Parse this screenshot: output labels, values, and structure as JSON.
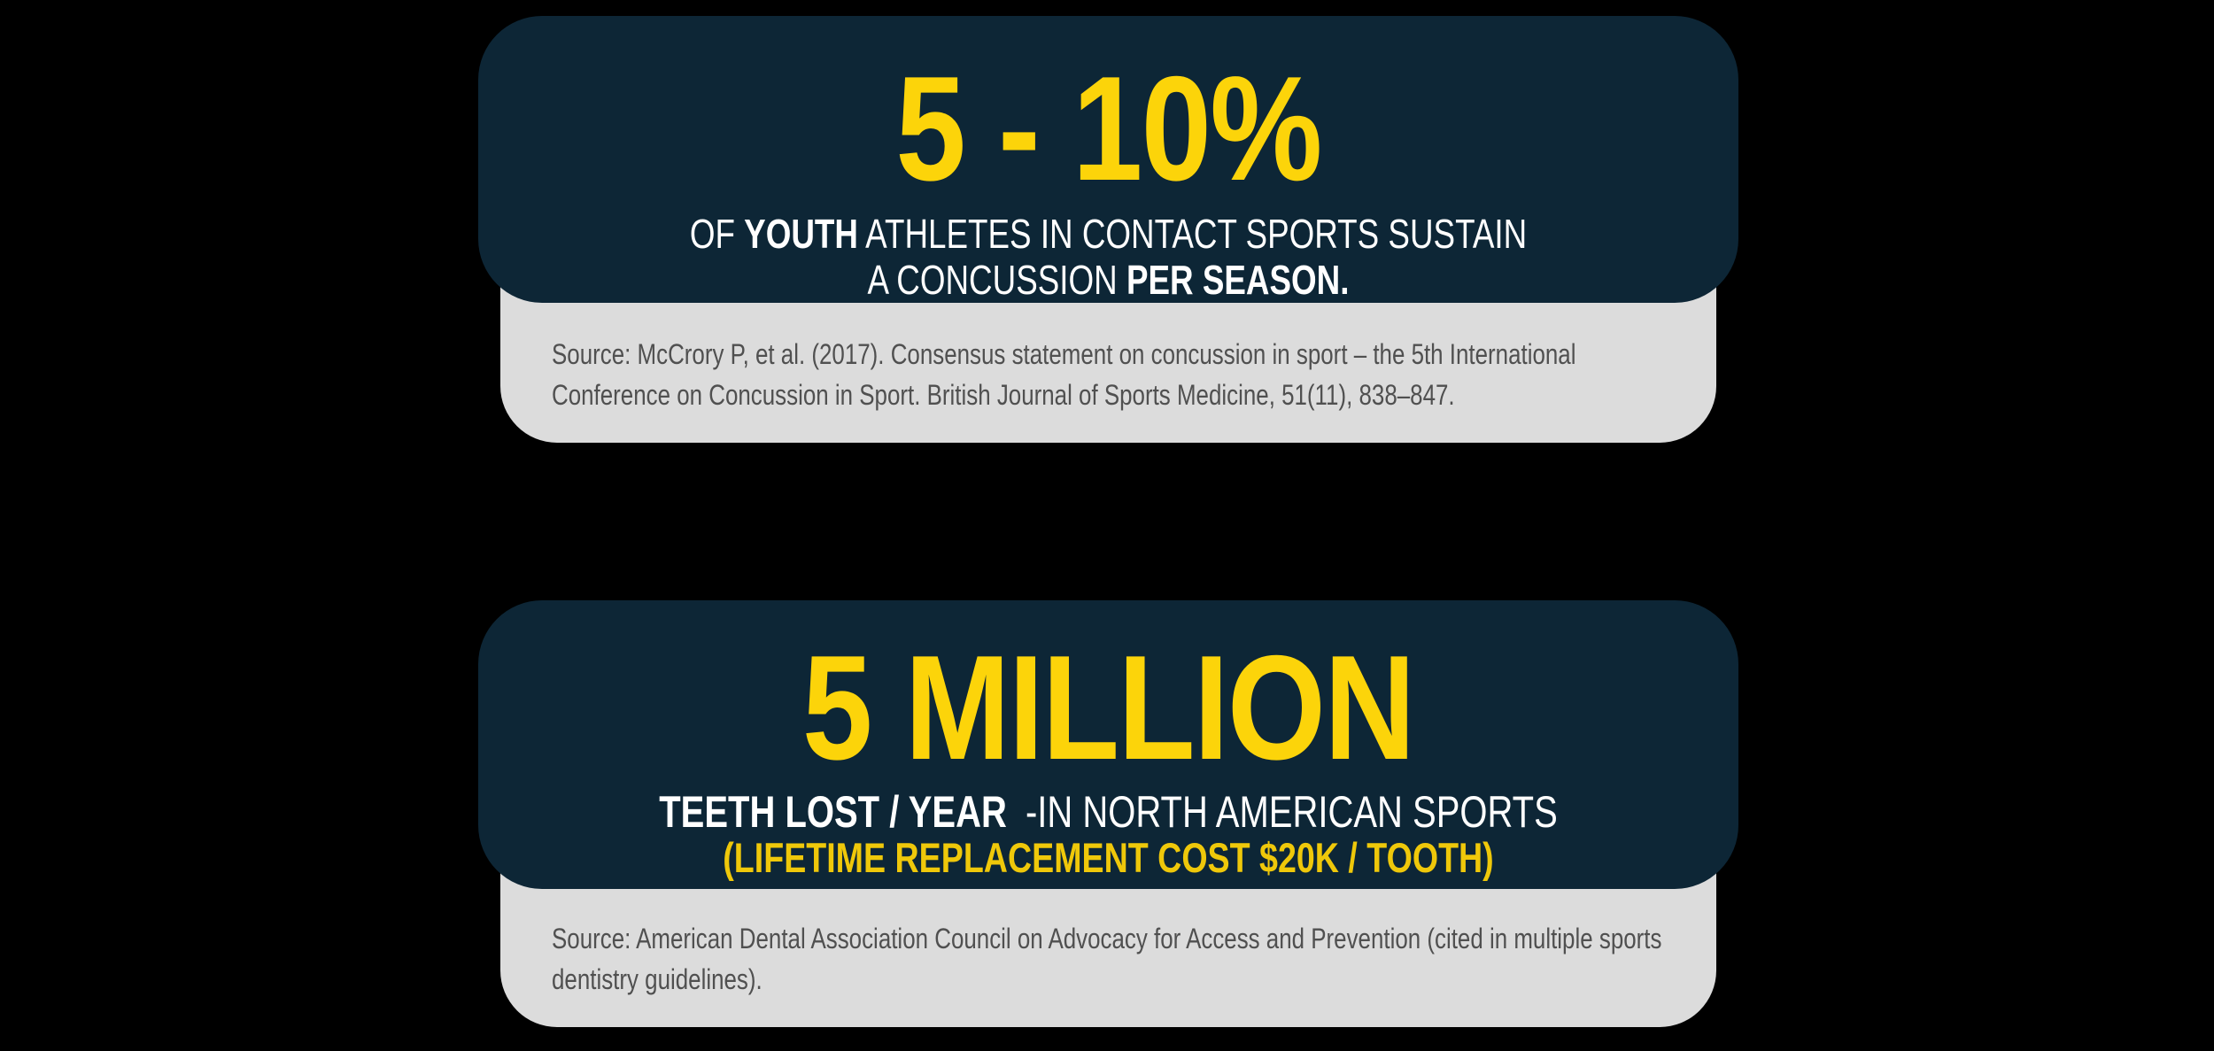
{
  "page": {
    "background": "#000000"
  },
  "colors": {
    "panel_navy": "#0d2636",
    "stat_yellow": "#fcd40a",
    "subline_yellow": "#efc80a",
    "source_box_gray": "#dcdcdc",
    "source_text_gray": "#505050",
    "description_white": "#ffffff"
  },
  "cards": [
    {
      "stat": "5 - 10%",
      "description_line1": [
        {
          "text": "OF ",
          "bold": false
        },
        {
          "text": "YOUTH",
          "bold": true
        },
        {
          "text": " ATHLETES IN CONTACT SPORTS SUSTAIN",
          "bold": false
        }
      ],
      "description_line2": [
        {
          "text": "A CONCUSSION ",
          "bold": false
        },
        {
          "text": "PER SEASON.",
          "bold": true
        }
      ],
      "source": "Source: McCrory P, et al. (2017). Consensus statement on concussion in sport – the 5th International Conference on Concussion in Sport. British Journal of Sports Medicine, 51(11), 838–847."
    },
    {
      "stat": "5 MILLION",
      "description_line1": [
        {
          "text": "TEETH LOST / YEAR",
          "bold": true
        },
        {
          "text": " -IN NORTH AMERICAN SPORTS",
          "bold": false
        }
      ],
      "description_line2_yellow": "(LIFETIME REPLACEMENT COST $20K / TOOTH)",
      "source": "Source: American Dental Association Council on Advocacy for Access and Prevention (cited in multiple sports dentistry guidelines)."
    }
  ]
}
